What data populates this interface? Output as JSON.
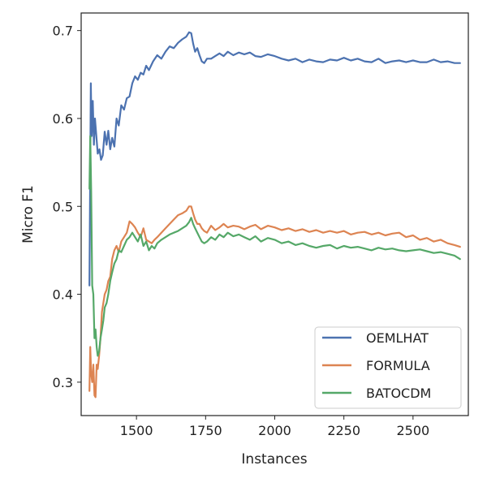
{
  "chart_data": {
    "type": "line",
    "title": "",
    "xlabel": "Instances",
    "ylabel": "Micro F1",
    "xlim": [
      1300,
      2700
    ],
    "ylim": [
      0.262,
      0.72
    ],
    "xticks": [
      1500,
      1750,
      2000,
      2250,
      2500
    ],
    "yticks": [
      0.3,
      0.4,
      0.5,
      0.6,
      0.7
    ],
    "xtick_labels": [
      "1500",
      "1750",
      "2000",
      "2250",
      "2500"
    ],
    "ytick_labels": [
      "0.3",
      "0.4",
      "0.5",
      "0.6",
      "0.7"
    ],
    "grid": false,
    "legend": "bottom-right",
    "series": [
      {
        "name": "OEMLHAT",
        "color": "#4c72b0",
        "x": [
          1330,
          1335,
          1338,
          1342,
          1346,
          1350,
          1355,
          1360,
          1366,
          1372,
          1378,
          1385,
          1392,
          1398,
          1405,
          1412,
          1420,
          1428,
          1436,
          1445,
          1455,
          1465,
          1475,
          1485,
          1495,
          1505,
          1515,
          1525,
          1535,
          1545,
          1560,
          1575,
          1590,
          1605,
          1620,
          1635,
          1650,
          1665,
          1680,
          1690,
          1698,
          1705,
          1712,
          1720,
          1728,
          1736,
          1745,
          1755,
          1770,
          1785,
          1800,
          1815,
          1830,
          1850,
          1870,
          1890,
          1910,
          1930,
          1950,
          1975,
          2000,
          2025,
          2050,
          2075,
          2100,
          2125,
          2150,
          2175,
          2200,
          2225,
          2250,
          2275,
          2300,
          2325,
          2350,
          2375,
          2400,
          2425,
          2450,
          2475,
          2500,
          2525,
          2550,
          2575,
          2600,
          2625,
          2650,
          2670
        ],
        "values": [
          0.41,
          0.64,
          0.58,
          0.62,
          0.57,
          0.6,
          0.58,
          0.56,
          0.565,
          0.553,
          0.558,
          0.585,
          0.57,
          0.586,
          0.565,
          0.578,
          0.568,
          0.6,
          0.592,
          0.615,
          0.61,
          0.623,
          0.625,
          0.64,
          0.648,
          0.644,
          0.652,
          0.65,
          0.66,
          0.655,
          0.665,
          0.672,
          0.668,
          0.676,
          0.682,
          0.68,
          0.686,
          0.69,
          0.693,
          0.698,
          0.697,
          0.685,
          0.676,
          0.68,
          0.672,
          0.665,
          0.663,
          0.668,
          0.668,
          0.671,
          0.674,
          0.671,
          0.676,
          0.672,
          0.675,
          0.673,
          0.675,
          0.671,
          0.67,
          0.673,
          0.671,
          0.668,
          0.666,
          0.668,
          0.664,
          0.667,
          0.665,
          0.664,
          0.667,
          0.666,
          0.669,
          0.666,
          0.668,
          0.665,
          0.664,
          0.668,
          0.663,
          0.665,
          0.666,
          0.664,
          0.666,
          0.664,
          0.664,
          0.667,
          0.664,
          0.665,
          0.663,
          0.663
        ]
      },
      {
        "name": "FORMULA",
        "color": "#dd8452",
        "x": [
          1330,
          1333,
          1336,
          1340,
          1344,
          1348,
          1352,
          1356,
          1360,
          1365,
          1370,
          1375,
          1380,
          1385,
          1392,
          1398,
          1405,
          1412,
          1420,
          1428,
          1436,
          1445,
          1455,
          1465,
          1475,
          1485,
          1495,
          1505,
          1515,
          1525,
          1535,
          1545,
          1555,
          1565,
          1575,
          1590,
          1605,
          1620,
          1635,
          1650,
          1665,
          1680,
          1690,
          1698,
          1705,
          1712,
          1720,
          1728,
          1736,
          1745,
          1755,
          1770,
          1785,
          1800,
          1815,
          1830,
          1850,
          1870,
          1890,
          1910,
          1930,
          1950,
          1975,
          2000,
          2025,
          2050,
          2075,
          2100,
          2125,
          2150,
          2175,
          2200,
          2225,
          2250,
          2275,
          2300,
          2325,
          2350,
          2375,
          2400,
          2425,
          2450,
          2475,
          2500,
          2525,
          2550,
          2575,
          2600,
          2625,
          2650,
          2670
        ],
        "values": [
          0.29,
          0.34,
          0.31,
          0.3,
          0.32,
          0.285,
          0.283,
          0.32,
          0.315,
          0.33,
          0.35,
          0.38,
          0.39,
          0.4,
          0.405,
          0.415,
          0.42,
          0.44,
          0.45,
          0.455,
          0.448,
          0.46,
          0.465,
          0.47,
          0.483,
          0.48,
          0.476,
          0.47,
          0.465,
          0.475,
          0.462,
          0.46,
          0.458,
          0.462,
          0.465,
          0.47,
          0.475,
          0.48,
          0.485,
          0.49,
          0.492,
          0.495,
          0.5,
          0.5,
          0.492,
          0.485,
          0.48,
          0.48,
          0.475,
          0.472,
          0.47,
          0.478,
          0.473,
          0.476,
          0.48,
          0.476,
          0.478,
          0.477,
          0.474,
          0.477,
          0.479,
          0.474,
          0.478,
          0.476,
          0.473,
          0.475,
          0.472,
          0.474,
          0.471,
          0.473,
          0.47,
          0.472,
          0.47,
          0.472,
          0.468,
          0.47,
          0.471,
          0.468,
          0.47,
          0.467,
          0.469,
          0.47,
          0.465,
          0.467,
          0.462,
          0.464,
          0.46,
          0.462,
          0.458,
          0.456,
          0.454
        ]
      },
      {
        "name": "BATOCDM",
        "color": "#55a868",
        "x": [
          1330,
          1333,
          1336,
          1340,
          1344,
          1348,
          1352,
          1356,
          1360,
          1365,
          1370,
          1375,
          1380,
          1385,
          1392,
          1398,
          1405,
          1412,
          1420,
          1428,
          1436,
          1445,
          1455,
          1465,
          1475,
          1485,
          1495,
          1505,
          1515,
          1525,
          1535,
          1545,
          1555,
          1565,
          1575,
          1590,
          1605,
          1620,
          1635,
          1650,
          1665,
          1680,
          1690,
          1698,
          1705,
          1712,
          1720,
          1728,
          1736,
          1745,
          1755,
          1770,
          1785,
          1800,
          1815,
          1830,
          1850,
          1870,
          1890,
          1910,
          1930,
          1950,
          1975,
          2000,
          2025,
          2050,
          2075,
          2100,
          2125,
          2150,
          2175,
          2200,
          2225,
          2250,
          2275,
          2300,
          2325,
          2350,
          2375,
          2400,
          2425,
          2450,
          2475,
          2500,
          2525,
          2550,
          2575,
          2600,
          2625,
          2650,
          2670
        ],
        "values": [
          0.52,
          0.58,
          0.52,
          0.41,
          0.4,
          0.35,
          0.36,
          0.34,
          0.33,
          0.335,
          0.35,
          0.36,
          0.37,
          0.385,
          0.39,
          0.4,
          0.415,
          0.425,
          0.435,
          0.44,
          0.45,
          0.448,
          0.455,
          0.462,
          0.465,
          0.47,
          0.465,
          0.46,
          0.468,
          0.455,
          0.46,
          0.45,
          0.455,
          0.452,
          0.458,
          0.462,
          0.465,
          0.468,
          0.47,
          0.472,
          0.475,
          0.478,
          0.482,
          0.487,
          0.48,
          0.475,
          0.47,
          0.465,
          0.46,
          0.458,
          0.46,
          0.465,
          0.462,
          0.468,
          0.465,
          0.47,
          0.466,
          0.468,
          0.465,
          0.462,
          0.466,
          0.46,
          0.464,
          0.462,
          0.458,
          0.46,
          0.456,
          0.458,
          0.455,
          0.453,
          0.455,
          0.456,
          0.452,
          0.455,
          0.453,
          0.454,
          0.452,
          0.45,
          0.453,
          0.451,
          0.452,
          0.45,
          0.449,
          0.45,
          0.451,
          0.449,
          0.447,
          0.448,
          0.446,
          0.444,
          0.44
        ]
      }
    ]
  }
}
